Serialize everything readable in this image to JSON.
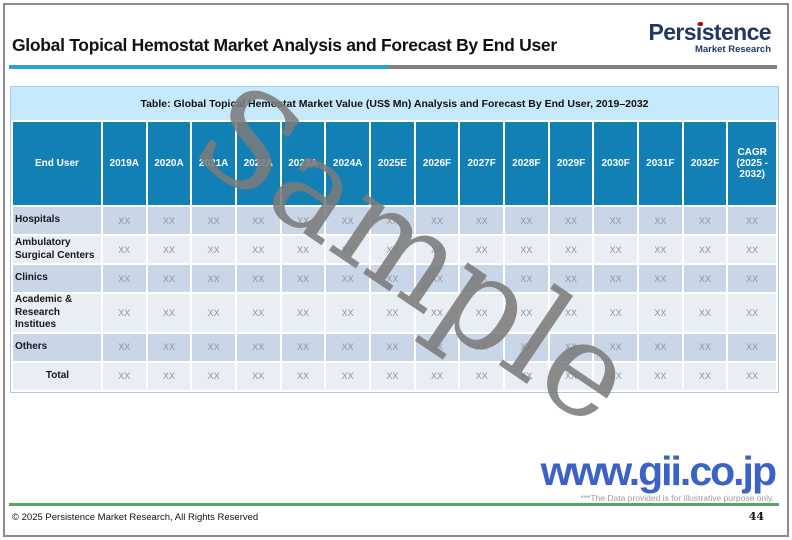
{
  "page": {
    "title": "Global Topical Hemostat Market Analysis and Forecast By End User",
    "footer": {
      "copyright": "© 2025 Persistence Market Research, All Rights Reserved",
      "page_number": "44"
    }
  },
  "logo": {
    "brand": "Persistence",
    "tagline": "Market Research"
  },
  "table": {
    "caption": "Table: Global Topical Hemostat Market Value (US$ Mn) Analysis and Forecast By End User, 2019–2032",
    "columns": [
      "End User",
      "2019A",
      "2020A",
      "2021A",
      "2022A",
      "2023A",
      "2024A",
      "2025E",
      "2026F",
      "2027F",
      "2028F",
      "2029F",
      "2030F",
      "2031F",
      "2032F",
      "CAGR (2025 - 2032)"
    ],
    "rows": [
      {
        "label": "Hospitals",
        "values": [
          "XX",
          "XX",
          "XX",
          "XX",
          "XX",
          "XX",
          "XX",
          "XX",
          "XX",
          "XX",
          "XX",
          "XX",
          "XX",
          "XX",
          "XX"
        ]
      },
      {
        "label": "Ambulatory Surgical Centers",
        "values": [
          "XX",
          "XX",
          "XX",
          "XX",
          "XX",
          "XX",
          "XX",
          "XX",
          "XX",
          "XX",
          "XX",
          "XX",
          "XX",
          "XX",
          "XX"
        ]
      },
      {
        "label": "Clinics",
        "values": [
          "XX",
          "XX",
          "XX",
          "XX",
          "XX",
          "XX",
          "XX",
          "XX",
          "XX",
          "XX",
          "XX",
          "XX",
          "XX",
          "XX",
          "XX"
        ]
      },
      {
        "label": "Academic & Research Institues",
        "values": [
          "XX",
          "XX",
          "XX",
          "XX",
          "XX",
          "XX",
          "XX",
          "XX",
          "XX",
          "XX",
          "XX",
          "XX",
          "XX",
          "XX",
          "XX"
        ]
      },
      {
        "label": "Others",
        "values": [
          "XX",
          "XX",
          "XX",
          "XX",
          "XX",
          "XX",
          "XX",
          "XX",
          "XX",
          "XX",
          "XX",
          "XX",
          "XX",
          "XX",
          "XX"
        ]
      },
      {
        "label": "Total",
        "values": [
          "XX",
          "XX",
          "XX",
          "XX",
          "XX",
          "XX",
          "XX",
          "XX",
          "XX",
          "XX",
          "XX",
          "XX",
          "XX",
          "XX",
          "XX"
        ]
      }
    ]
  },
  "watermarks": {
    "sample": "Sample",
    "website": "www.gii.co.jp",
    "disclaimer": "***The Data provided is for illustrative purpose only."
  },
  "colors": {
    "header_blue": "#1280B5",
    "caption_bg": "#C6E9FB",
    "row_dark": "#C8D6E8",
    "row_light": "#E9EDF4",
    "accent_blue": "#2B9FD9",
    "accent_gray": "#808080",
    "green_line": "#57A85C",
    "gii_blue": "#3B62C6",
    "logo_navy": "#203864",
    "logo_red": "#C00000",
    "page_border": "#8C8C8C"
  }
}
